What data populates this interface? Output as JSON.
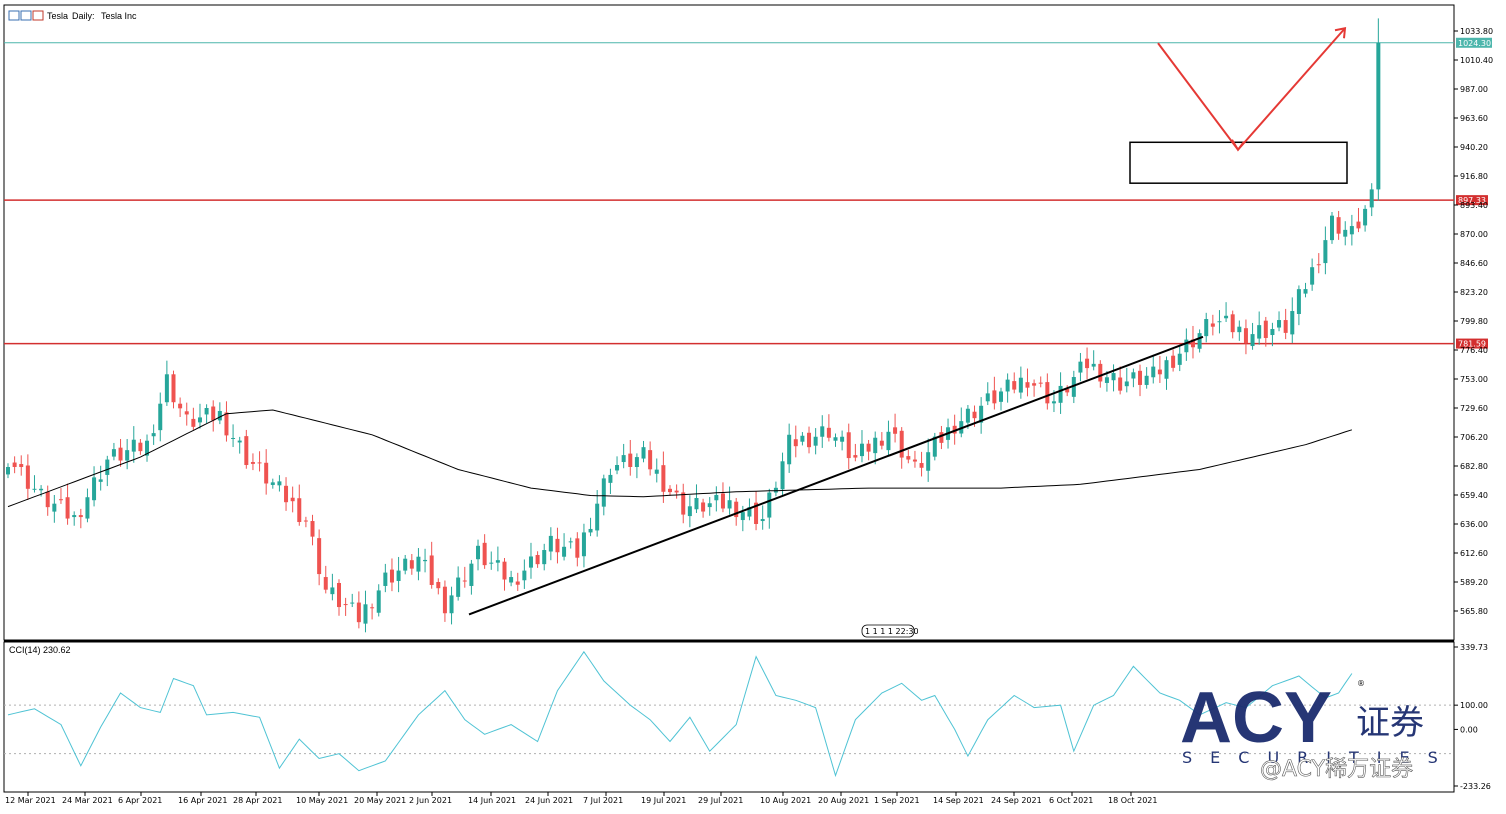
{
  "header": {
    "symbol": "Tesla",
    "timeframe": "Daily:",
    "description": "Tesla Inc"
  },
  "time_badge": "1 1 1 1 22:30",
  "indicator": {
    "label": "CCI(14) 230.62",
    "levels": [
      100,
      0,
      -100
    ]
  },
  "watermark": {
    "brand": "ACY",
    "cn": "证券",
    "securities": "SECURITIES",
    "user": "@ACY稀万证券",
    "registered": "®"
  },
  "colors": {
    "bull": "#26a69a",
    "bear": "#ef5350",
    "resistance": "#d32f2f",
    "price_line": "#4db6ac",
    "cci": "#4fc3d4"
  },
  "chart_data": [
    {
      "type": "candlestick",
      "title": "Tesla, Daily: Tesla Inc",
      "y_ticks": [
        1033.8,
        1010.4,
        987.0,
        963.6,
        940.2,
        916.8,
        893.4,
        870.0,
        846.6,
        823.2,
        799.8,
        776.4,
        753.0,
        729.6,
        706.2,
        682.8,
        659.4,
        636.0,
        612.6,
        589.2,
        565.8
      ],
      "x_ticks": [
        "12 Mar 2021",
        "24 Mar 2021",
        "6 Apr 2021",
        "16 Apr 2021",
        "28 Apr 2021",
        "10 May 2021",
        "20 May 2021",
        "2 Jun 2021",
        "14 Jun 2021",
        "24 Jun 2021",
        "7 Jul 2021",
        "19 Jul 2021",
        "29 Jul 2021",
        "10 Aug 2021",
        "20 Aug 2021",
        "1 Sep 2021",
        "14 Sep 2021",
        "24 Sep 2021",
        "6 Oct 2021",
        "18 Oct 2021"
      ],
      "current_price": 1024.3,
      "horizontal_levels": [
        {
          "label": "897.33",
          "value": 897.33
        },
        {
          "label": "781.59",
          "value": 781.59
        }
      ],
      "trendline": {
        "from": [
          "14 Jun 2021",
          563
        ],
        "to": [
          "25 Oct 2021",
          787
        ]
      },
      "box": {
        "from": [
          "21 Oct 2021",
          944
        ],
        "to": [
          "4 Nov 2021",
          911
        ]
      },
      "arrow": {
        "points": [
          [
            1024,
            "22 Oct 2021"
          ],
          [
            938,
            "29 Oct 2021"
          ],
          [
            1036,
            "4 Nov 2021"
          ]
        ]
      },
      "close_anchors": [
        [
          0,
          690
        ],
        [
          5,
          658
        ],
        [
          10,
          640
        ],
        [
          15,
          688
        ],
        [
          21,
          700
        ],
        [
          24,
          752
        ],
        [
          27,
          718
        ],
        [
          32,
          724
        ],
        [
          36,
          690
        ],
        [
          40,
          668
        ],
        [
          45,
          640
        ],
        [
          48,
          583
        ],
        [
          53,
          560
        ],
        [
          57,
          592
        ],
        [
          62,
          608
        ],
        [
          66,
          572
        ],
        [
          71,
          612
        ],
        [
          76,
          590
        ],
        [
          82,
          620
        ],
        [
          86,
          612
        ],
        [
          91,
          682
        ],
        [
          96,
          690
        ],
        [
          102,
          650
        ],
        [
          109,
          652
        ],
        [
          114,
          640
        ],
        [
          118,
          700
        ],
        [
          124,
          712
        ],
        [
          128,
          688
        ],
        [
          133,
          712
        ],
        [
          137,
          680
        ],
        [
          143,
          717
        ],
        [
          148,
          735
        ],
        [
          154,
          754
        ],
        [
          158,
          735
        ],
        [
          163,
          765
        ],
        [
          168,
          750
        ],
        [
          173,
          755
        ],
        [
          178,
          780
        ],
        [
          182,
          800
        ],
        [
          187,
          790
        ],
        [
          193,
          795
        ],
        [
          197,
          840
        ],
        [
          200,
          880
        ],
        [
          203,
          870
        ],
        [
          206,
          898
        ],
        [
          207,
          1024
        ]
      ],
      "ma_anchors": [
        [
          0,
          650
        ],
        [
          20,
          690
        ],
        [
          33,
          725
        ],
        [
          40,
          728
        ],
        [
          55,
          708
        ],
        [
          68,
          680
        ],
        [
          79,
          665
        ],
        [
          88,
          659
        ],
        [
          96,
          658
        ],
        [
          110,
          662
        ],
        [
          130,
          665
        ],
        [
          150,
          665
        ],
        [
          162,
          668
        ],
        [
          180,
          680
        ],
        [
          196,
          700
        ],
        [
          203,
          712
        ]
      ]
    },
    {
      "type": "line",
      "title": "CCI(14) 230.62",
      "y_ticks": [
        339.73,
        100.0,
        0.0,
        -233.26
      ],
      "last_value": 230.62,
      "value_anchors": [
        [
          0,
          60
        ],
        [
          4,
          85
        ],
        [
          8,
          20
        ],
        [
          11,
          -150
        ],
        [
          14,
          10
        ],
        [
          17,
          150
        ],
        [
          20,
          90
        ],
        [
          23,
          70
        ],
        [
          25,
          210
        ],
        [
          28,
          180
        ],
        [
          30,
          60
        ],
        [
          34,
          70
        ],
        [
          38,
          50
        ],
        [
          41,
          -160
        ],
        [
          44,
          -40
        ],
        [
          47,
          -120
        ],
        [
          50,
          -100
        ],
        [
          53,
          -170
        ],
        [
          57,
          -130
        ],
        [
          62,
          60
        ],
        [
          66,
          160
        ],
        [
          69,
          40
        ],
        [
          72,
          -20
        ],
        [
          76,
          20
        ],
        [
          80,
          -50
        ],
        [
          83,
          160
        ],
        [
          87,
          320
        ],
        [
          90,
          200
        ],
        [
          94,
          100
        ],
        [
          97,
          40
        ],
        [
          100,
          -50
        ],
        [
          103,
          50
        ],
        [
          106,
          -90
        ],
        [
          110,
          20
        ],
        [
          113,
          300
        ],
        [
          116,
          140
        ],
        [
          119,
          120
        ],
        [
          122,
          90
        ],
        [
          125,
          -190
        ],
        [
          128,
          40
        ],
        [
          132,
          150
        ],
        [
          135,
          190
        ],
        [
          138,
          120
        ],
        [
          140,
          140
        ],
        [
          143,
          0
        ],
        [
          145,
          -110
        ],
        [
          148,
          40
        ],
        [
          152,
          140
        ],
        [
          155,
          90
        ],
        [
          159,
          100
        ],
        [
          161,
          -90
        ],
        [
          164,
          100
        ],
        [
          167,
          140
        ],
        [
          170,
          260
        ],
        [
          174,
          150
        ],
        [
          177,
          120
        ],
        [
          180,
          60
        ],
        [
          184,
          110
        ],
        [
          187,
          90
        ],
        [
          191,
          180
        ],
        [
          195,
          220
        ],
        [
          199,
          130
        ],
        [
          201,
          150
        ],
        [
          203,
          230.62
        ]
      ]
    }
  ]
}
